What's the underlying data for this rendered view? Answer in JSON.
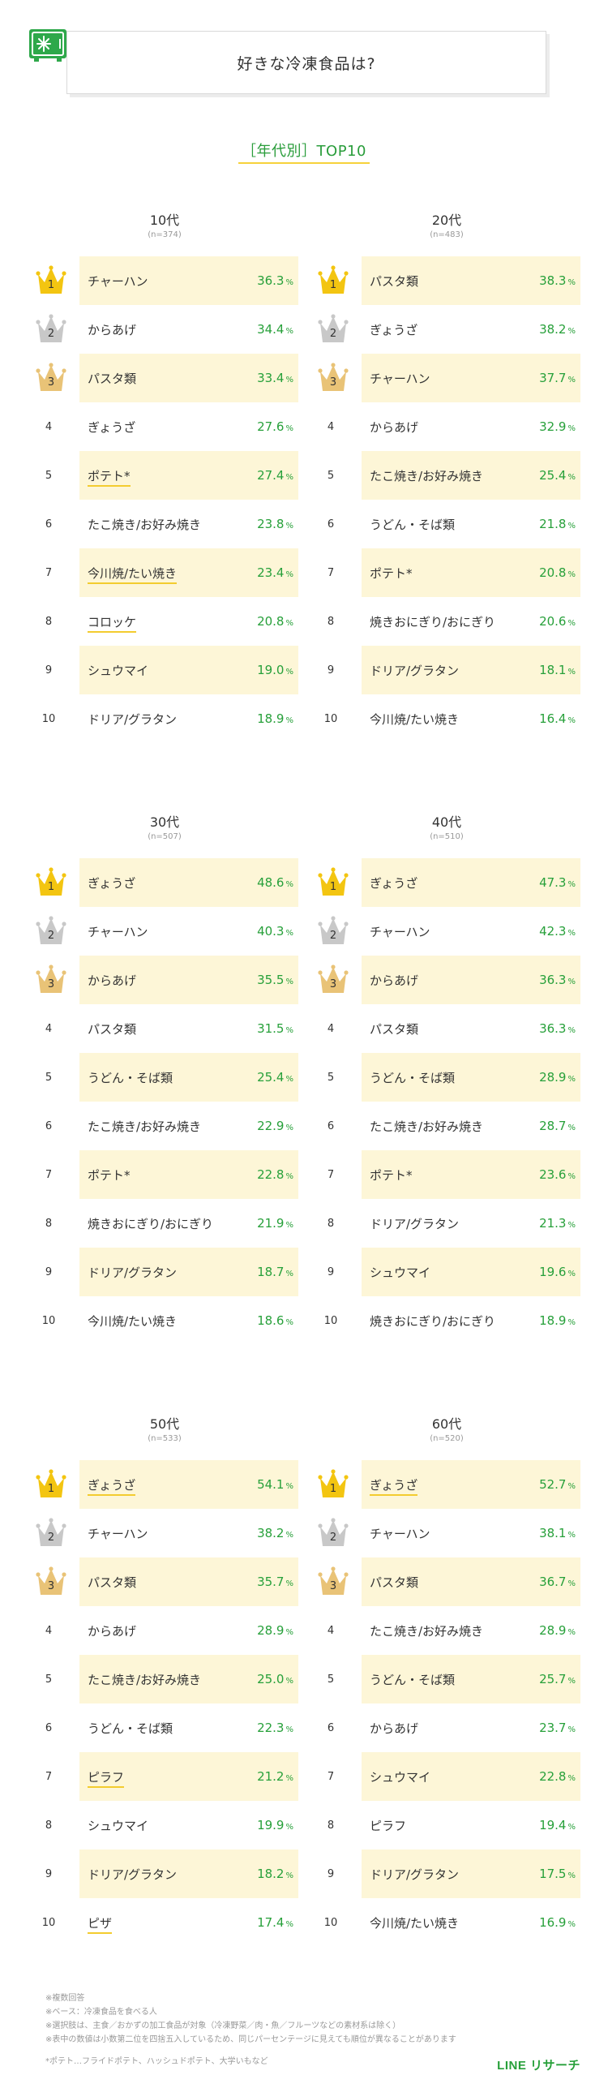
{
  "header": {
    "title": "好きな冷凍食品は?"
  },
  "subtitle": "［年代別］TOP10",
  "unit": "%",
  "colors": {
    "accent_green": "#27a03a",
    "highlight_bg": "#fdf6d7",
    "gold": "#f3c511",
    "silver": "#c8c8c8",
    "bronze": "#e9c377"
  },
  "chart_data": [
    {
      "type": "table",
      "title": "10代",
      "n": "(n=374)",
      "groups": [
        {
          "rank": "1",
          "item": "チャーハン",
          "value": "36.3",
          "hl": true,
          "ul": false
        },
        {
          "rank": "2",
          "item": "からあげ",
          "value": "34.4",
          "hl": false,
          "ul": false
        },
        {
          "rank": "3",
          "item": "パスタ類",
          "value": "33.4",
          "hl": true,
          "ul": false
        },
        {
          "rank": "4",
          "item": "ぎょうざ",
          "value": "27.6",
          "hl": false,
          "ul": false
        },
        {
          "rank": "5",
          "item": "ポテト*",
          "value": "27.4",
          "hl": true,
          "ul": true
        },
        {
          "rank": "6",
          "item": "たこ焼き/お好み焼き",
          "value": "23.8",
          "hl": false,
          "ul": false
        },
        {
          "rank": "7",
          "item": "今川焼/たい焼き",
          "value": "23.4",
          "hl": true,
          "ul": true
        },
        {
          "rank": "8",
          "item": "コロッケ",
          "value": "20.8",
          "hl": false,
          "ul": true
        },
        {
          "rank": "9",
          "item": "シュウマイ",
          "value": "19.0",
          "hl": true,
          "ul": false
        },
        {
          "rank": "10",
          "item": "ドリア/グラタン",
          "value": "18.9",
          "hl": false,
          "ul": false
        }
      ]
    },
    {
      "type": "table",
      "title": "20代",
      "n": "(n=483)",
      "groups": [
        {
          "rank": "1",
          "item": "パスタ類",
          "value": "38.3",
          "hl": true,
          "ul": false
        },
        {
          "rank": "2",
          "item": "ぎょうざ",
          "value": "38.2",
          "hl": false,
          "ul": false
        },
        {
          "rank": "3",
          "item": "チャーハン",
          "value": "37.7",
          "hl": true,
          "ul": false
        },
        {
          "rank": "4",
          "item": "からあげ",
          "value": "32.9",
          "hl": false,
          "ul": false
        },
        {
          "rank": "5",
          "item": "たこ焼き/お好み焼き",
          "value": "25.4",
          "hl": true,
          "ul": false
        },
        {
          "rank": "6",
          "item": "うどん・そば類",
          "value": "21.8",
          "hl": false,
          "ul": false
        },
        {
          "rank": "7",
          "item": "ポテト*",
          "value": "20.8",
          "hl": true,
          "ul": false
        },
        {
          "rank": "8",
          "item": "焼きおにぎり/おにぎり",
          "value": "20.6",
          "hl": false,
          "ul": false
        },
        {
          "rank": "9",
          "item": "ドリア/グラタン",
          "value": "18.1",
          "hl": true,
          "ul": false
        },
        {
          "rank": "10",
          "item": "今川焼/たい焼き",
          "value": "16.4",
          "hl": false,
          "ul": false
        }
      ]
    },
    {
      "type": "table",
      "title": "30代",
      "n": "(n=507)",
      "groups": [
        {
          "rank": "1",
          "item": "ぎょうざ",
          "value": "48.6",
          "hl": true,
          "ul": false
        },
        {
          "rank": "2",
          "item": "チャーハン",
          "value": "40.3",
          "hl": false,
          "ul": false
        },
        {
          "rank": "3",
          "item": "からあげ",
          "value": "35.5",
          "hl": true,
          "ul": false
        },
        {
          "rank": "4",
          "item": "パスタ類",
          "value": "31.5",
          "hl": false,
          "ul": false
        },
        {
          "rank": "5",
          "item": "うどん・そば類",
          "value": "25.4",
          "hl": true,
          "ul": false
        },
        {
          "rank": "6",
          "item": "たこ焼き/お好み焼き",
          "value": "22.9",
          "hl": false,
          "ul": false
        },
        {
          "rank": "7",
          "item": "ポテト*",
          "value": "22.8",
          "hl": true,
          "ul": false
        },
        {
          "rank": "8",
          "item": "焼きおにぎり/おにぎり",
          "value": "21.9",
          "hl": false,
          "ul": false
        },
        {
          "rank": "9",
          "item": "ドリア/グラタン",
          "value": "18.7",
          "hl": true,
          "ul": false
        },
        {
          "rank": "10",
          "item": "今川焼/たい焼き",
          "value": "18.6",
          "hl": false,
          "ul": false
        }
      ]
    },
    {
      "type": "table",
      "title": "40代",
      "n": "(n=510)",
      "groups": [
        {
          "rank": "1",
          "item": "ぎょうざ",
          "value": "47.3",
          "hl": true,
          "ul": false
        },
        {
          "rank": "2",
          "item": "チャーハン",
          "value": "42.3",
          "hl": false,
          "ul": false
        },
        {
          "rank": "3",
          "item": "からあげ",
          "value": "36.3",
          "hl": true,
          "ul": false
        },
        {
          "rank": "4",
          "item": "パスタ類",
          "value": "36.3",
          "hl": false,
          "ul": false
        },
        {
          "rank": "5",
          "item": "うどん・そば類",
          "value": "28.9",
          "hl": true,
          "ul": false
        },
        {
          "rank": "6",
          "item": "たこ焼き/お好み焼き",
          "value": "28.7",
          "hl": false,
          "ul": false
        },
        {
          "rank": "7",
          "item": "ポテト*",
          "value": "23.6",
          "hl": true,
          "ul": false
        },
        {
          "rank": "8",
          "item": "ドリア/グラタン",
          "value": "21.3",
          "hl": false,
          "ul": false
        },
        {
          "rank": "9",
          "item": "シュウマイ",
          "value": "19.6",
          "hl": true,
          "ul": false
        },
        {
          "rank": "10",
          "item": "焼きおにぎり/おにぎり",
          "value": "18.9",
          "hl": false,
          "ul": false
        }
      ]
    },
    {
      "type": "table",
      "title": "50代",
      "n": "(n=533)",
      "groups": [
        {
          "rank": "1",
          "item": "ぎょうざ",
          "value": "54.1",
          "hl": true,
          "ul": true
        },
        {
          "rank": "2",
          "item": "チャーハン",
          "value": "38.2",
          "hl": false,
          "ul": false
        },
        {
          "rank": "3",
          "item": "パスタ類",
          "value": "35.7",
          "hl": true,
          "ul": false
        },
        {
          "rank": "4",
          "item": "からあげ",
          "value": "28.9",
          "hl": false,
          "ul": false
        },
        {
          "rank": "5",
          "item": "たこ焼き/お好み焼き",
          "value": "25.0",
          "hl": true,
          "ul": false
        },
        {
          "rank": "6",
          "item": "うどん・そば類",
          "value": "22.3",
          "hl": false,
          "ul": false
        },
        {
          "rank": "7",
          "item": "ピラフ",
          "value": "21.2",
          "hl": true,
          "ul": true
        },
        {
          "rank": "8",
          "item": "シュウマイ",
          "value": "19.9",
          "hl": false,
          "ul": false
        },
        {
          "rank": "9",
          "item": "ドリア/グラタン",
          "value": "18.2",
          "hl": true,
          "ul": false
        },
        {
          "rank": "10",
          "item": "ピザ",
          "value": "17.4",
          "hl": false,
          "ul": true
        }
      ]
    },
    {
      "type": "table",
      "title": "60代",
      "n": "(n=520)",
      "groups": [
        {
          "rank": "1",
          "item": "ぎょうざ",
          "value": "52.7",
          "hl": true,
          "ul": true
        },
        {
          "rank": "2",
          "item": "チャーハン",
          "value": "38.1",
          "hl": false,
          "ul": false
        },
        {
          "rank": "3",
          "item": "パスタ類",
          "value": "36.7",
          "hl": true,
          "ul": false
        },
        {
          "rank": "4",
          "item": "たこ焼き/お好み焼き",
          "value": "28.9",
          "hl": false,
          "ul": false
        },
        {
          "rank": "5",
          "item": "うどん・そば類",
          "value": "25.7",
          "hl": true,
          "ul": false
        },
        {
          "rank": "6",
          "item": "からあげ",
          "value": "23.7",
          "hl": false,
          "ul": false
        },
        {
          "rank": "7",
          "item": "シュウマイ",
          "value": "22.8",
          "hl": true,
          "ul": false
        },
        {
          "rank": "8",
          "item": "ピラフ",
          "value": "19.4",
          "hl": false,
          "ul": false
        },
        {
          "rank": "9",
          "item": "ドリア/グラタン",
          "value": "17.5",
          "hl": true,
          "ul": false
        },
        {
          "rank": "10",
          "item": "今川焼/たい焼き",
          "value": "16.9",
          "hl": false,
          "ul": false
        }
      ]
    }
  ],
  "notes": [
    "※複数回答",
    "※ベース：冷凍食品を食べる人",
    "※選択肢は、主食／おかずの加工食品が対象（冷凍野菜／肉・魚／フルーツなどの素材系は除く）",
    "※表中の数値は小数第二位を四捨五入しているため、同じパーセンテージに見えても順位が異なることがあります"
  ],
  "footnote": "*ポテト…フライドポテト、ハッシュドポテト、大学いもなど",
  "logo": "LINE リサーチ"
}
